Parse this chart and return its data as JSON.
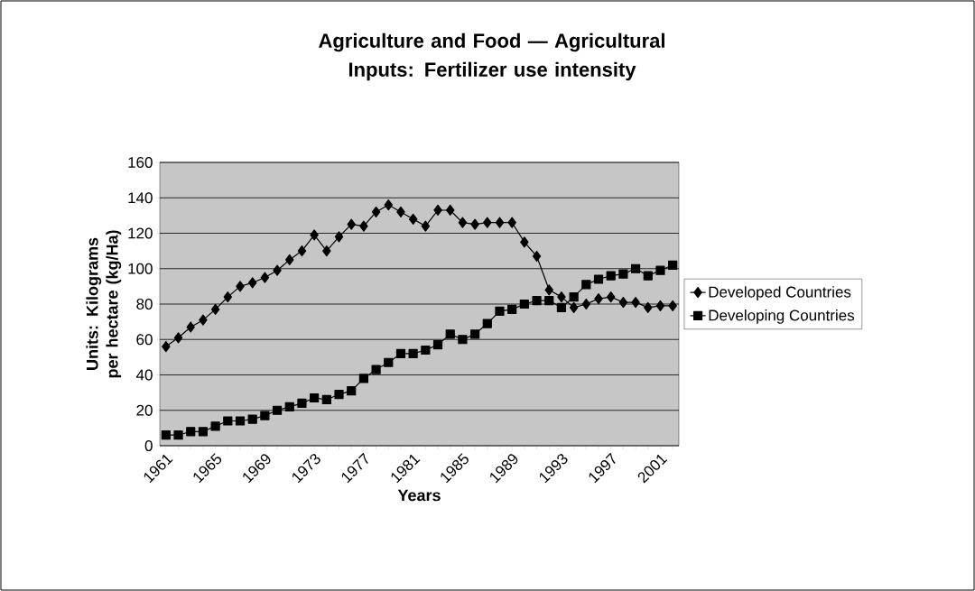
{
  "chart_data": {
    "type": "line",
    "title": "Agriculture and Food — Agricultural Inputs: Fertilizer use intensity",
    "xlabel": "Years",
    "ylabel": "Units: Kilograms per hectare (kg/Ha)",
    "categories": [
      "1961",
      null,
      null,
      null,
      "1965",
      null,
      null,
      null,
      "1969",
      null,
      null,
      null,
      "1973",
      null,
      null,
      null,
      "1977",
      null,
      null,
      null,
      "1981",
      null,
      null,
      null,
      "1985",
      null,
      null,
      null,
      "1989",
      null,
      null,
      null,
      "1993",
      null,
      null,
      null,
      "1997",
      null,
      null,
      null,
      "2001",
      null
    ],
    "series": [
      {
        "name": "Developed Countries",
        "color": "#000000",
        "marker": "diamond",
        "values": [
          56,
          61,
          67,
          71,
          77,
          84,
          90,
          92,
          95,
          99,
          105,
          110,
          119,
          110,
          118,
          125,
          124,
          132,
          136,
          132,
          128,
          124,
          133,
          133,
          126,
          125,
          126,
          126,
          126,
          115,
          107,
          88,
          84,
          78,
          80,
          83,
          84,
          81,
          81,
          78,
          79,
          79
        ]
      },
      {
        "name": "Developing Countries",
        "color": "#000000",
        "marker": "square",
        "values": [
          6,
          6,
          8,
          8,
          11,
          14,
          14,
          15,
          17,
          20,
          22,
          24,
          27,
          26,
          29,
          31,
          38,
          43,
          47,
          52,
          52,
          54,
          57,
          63,
          60,
          63,
          69,
          76,
          77,
          80,
          82,
          82,
          78,
          84,
          91,
          94,
          96,
          97,
          100,
          96,
          99,
          102
        ]
      }
    ],
    "ylim": [
      0,
      160
    ],
    "yticks": [
      0,
      20,
      40,
      60,
      80,
      100,
      120,
      140,
      160
    ],
    "grid": "y",
    "legend": "right",
    "line_style": "solid"
  }
}
